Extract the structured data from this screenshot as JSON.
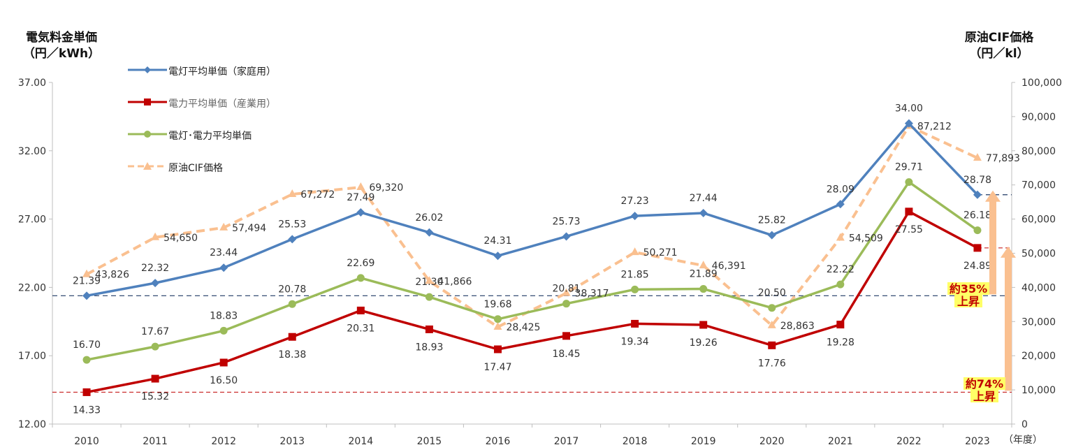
{
  "chart_data": {
    "type": "line",
    "title": "",
    "y_left_label": [
      "電気料金単価",
      "（円／kWh）"
    ],
    "y_right_label": [
      "原油CIF価格",
      "（円／kl）"
    ],
    "x_unit_label": "（年度）",
    "categories": [
      "2010",
      "2011",
      "2012",
      "2013",
      "2014",
      "2015",
      "2016",
      "2017",
      "2018",
      "2019",
      "2020",
      "2021",
      "2022",
      "2023"
    ],
    "ylim_left": [
      12,
      37
    ],
    "yticks_left": [
      "12.00",
      "17.00",
      "22.00",
      "27.00",
      "32.00",
      "37.00"
    ],
    "ylim_right": [
      0,
      100000
    ],
    "yticks_right": [
      "0",
      "10,000",
      "20,000",
      "30,000",
      "40,000",
      "50,000",
      "60,000",
      "70,000",
      "80,000",
      "90,000",
      "100,000"
    ],
    "legend_position": "top-left",
    "grid": false,
    "series": [
      {
        "name": "電灯平均単価（家庭用）",
        "axis": "left",
        "color": "#4f81bd",
        "marker": "diamond",
        "dashed": false,
        "values": [
          21.39,
          22.32,
          23.44,
          25.53,
          27.49,
          26.02,
          24.31,
          25.73,
          27.23,
          27.44,
          25.82,
          28.09,
          34.0,
          28.78
        ],
        "labels": [
          "21.39",
          "22.32",
          "23.44",
          "25.53",
          "27.49",
          "26.02",
          "24.31",
          "25.73",
          "27.23",
          "27.44",
          "25.82",
          "28.09",
          "34.00",
          "28.78"
        ]
      },
      {
        "name": "電力平均単価（産業用）",
        "axis": "left",
        "color": "#c00000",
        "marker": "square",
        "dashed": false,
        "values": [
          14.33,
          15.32,
          16.5,
          18.38,
          20.31,
          18.93,
          17.47,
          18.45,
          19.34,
          19.26,
          17.76,
          19.28,
          27.55,
          24.89
        ],
        "labels": [
          "14.33",
          "15.32",
          "16.50",
          "18.38",
          "20.31",
          "18.93",
          "17.47",
          "18.45",
          "19.34",
          "19.26",
          "17.76",
          "19.28",
          "27.55",
          "24.89"
        ]
      },
      {
        "name": "電灯･電力平均単価",
        "axis": "left",
        "color": "#9bbb59",
        "marker": "circle",
        "dashed": false,
        "values": [
          16.7,
          17.67,
          18.83,
          20.78,
          22.69,
          21.3,
          19.68,
          20.81,
          21.85,
          21.89,
          20.5,
          22.22,
          29.71,
          26.18
        ],
        "labels": [
          "16.70",
          "17.67",
          "18.83",
          "20.78",
          "22.69",
          "21.30",
          "19.68",
          "20.81",
          "21.85",
          "21.89",
          "20.50",
          "22.22",
          "29.71",
          "26.18"
        ]
      },
      {
        "name": "原油CIF価格",
        "axis": "right",
        "color": "#fac090",
        "marker": "triangle",
        "dashed": true,
        "values": [
          43826,
          54650,
          57494,
          67272,
          69320,
          41866,
          28425,
          38317,
          50271,
          46391,
          28863,
          54509,
          87212,
          77893
        ],
        "labels": [
          "43,826",
          "54,650",
          "57,494",
          "67,272",
          "69,320",
          "41,866",
          "28,425",
          "38,317",
          "50,271",
          "46,391",
          "28,863",
          "54,509",
          "87,212",
          "77,893"
        ]
      }
    ],
    "annotations": [
      {
        "text_top": "約35%",
        "text_bottom": "上昇",
        "from_value": 21.39,
        "to_value": 28.78
      },
      {
        "text_top": "約74%",
        "text_bottom": "上昇",
        "from_value": 14.33,
        "to_value": 24.89
      }
    ],
    "reference_line_colors": [
      "#1f3864",
      "#c00000"
    ],
    "arrow_color": "#fac090",
    "badge_color": "#ffff66"
  }
}
